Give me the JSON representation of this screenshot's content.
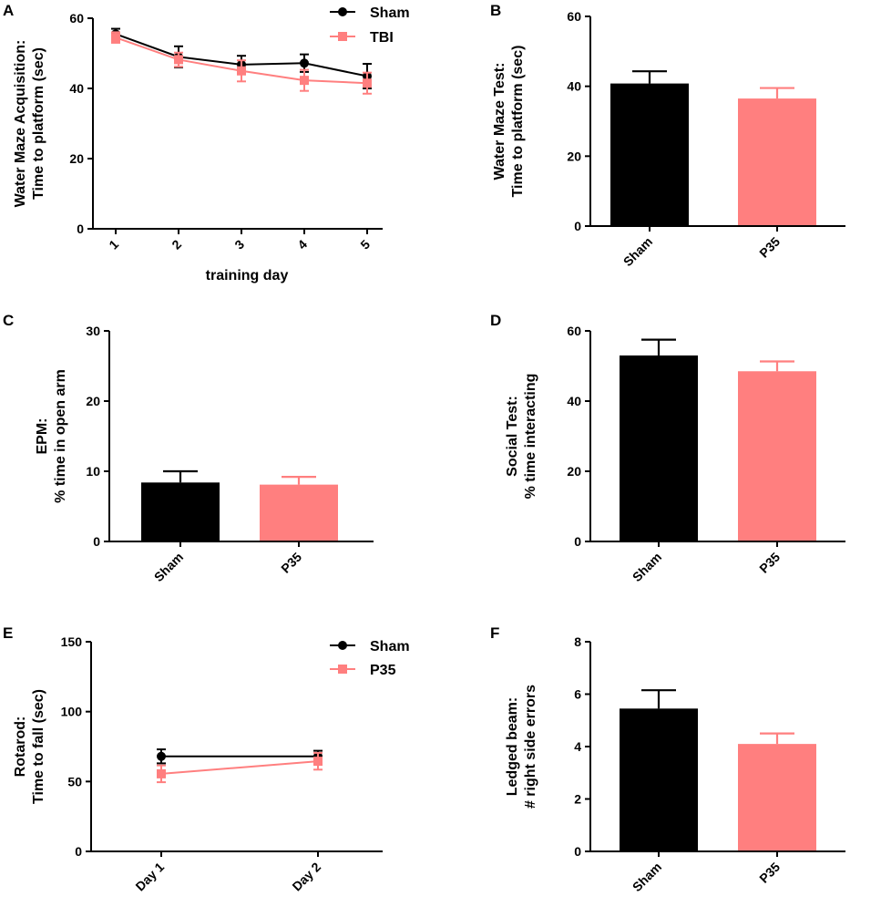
{
  "colors": {
    "sham": "#000000",
    "tbi": "#ff7f7f",
    "axis": "#000000"
  },
  "chart_data": [
    {
      "panel": "A",
      "type": "line",
      "xlabel": "training day",
      "ylabel_lines": [
        "Water Maze Acquisition:",
        "Time to platform (sec)"
      ],
      "categories": [
        "1",
        "2",
        "3",
        "4",
        "5"
      ],
      "yticks": [
        "0",
        "20",
        "40",
        "60"
      ],
      "ylim": [
        0,
        60
      ],
      "series": [
        {
          "name": "Sham",
          "marker": "circle",
          "color": "#000000",
          "values": [
            55.5,
            49,
            46.8,
            47.2,
            43.5
          ],
          "errors": [
            1.5,
            3,
            2.5,
            2.5,
            3.5
          ]
        },
        {
          "name": "TBI",
          "marker": "square",
          "color": "#ff7f7f",
          "values": [
            54.5,
            48.2,
            45,
            42.3,
            41.5
          ],
          "errors": [
            1.5,
            2,
            3,
            3,
            3
          ]
        }
      ],
      "legend": "top-right"
    },
    {
      "panel": "B",
      "type": "bar",
      "ylabel_lines": [
        "Water Maze Test:",
        "Time to platform (sec)"
      ],
      "categories": [
        "Sham",
        "P35"
      ],
      "values": [
        40.8,
        36.5
      ],
      "errors": [
        3.5,
        3
      ],
      "yticks": [
        "0",
        "20",
        "40",
        "60"
      ],
      "ylim": [
        0,
        60
      ]
    },
    {
      "panel": "C",
      "type": "bar",
      "ylabel_lines": [
        "EPM:",
        "% time in open arm"
      ],
      "categories": [
        "Sham",
        "P35"
      ],
      "values": [
        8.4,
        8.1
      ],
      "errors": [
        1.6,
        1.1
      ],
      "yticks": [
        "0",
        "10",
        "20",
        "30"
      ],
      "ylim": [
        0,
        30
      ]
    },
    {
      "panel": "D",
      "type": "bar",
      "ylabel_lines": [
        "Social Test:",
        "% time interacting"
      ],
      "categories": [
        "Sham",
        "P35"
      ],
      "values": [
        53,
        48.5
      ],
      "errors": [
        4.5,
        2.8
      ],
      "yticks": [
        "0",
        "20",
        "40",
        "60"
      ],
      "ylim": [
        0,
        60
      ]
    },
    {
      "panel": "E",
      "type": "line",
      "ylabel_lines": [
        "Rotarod:",
        "Time to fall (sec)"
      ],
      "categories": [
        "Day 1",
        "Day 2"
      ],
      "yticks": [
        "0",
        "50",
        "100",
        "150"
      ],
      "ylim": [
        0,
        150
      ],
      "series": [
        {
          "name": "Sham",
          "marker": "circle",
          "color": "#000000",
          "values": [
            68,
            68
          ],
          "errors": [
            5,
            4
          ]
        },
        {
          "name": "P35",
          "marker": "square",
          "color": "#ff7f7f",
          "values": [
            55.5,
            64.5
          ],
          "errors": [
            6,
            6
          ]
        }
      ],
      "legend": "top-right"
    },
    {
      "panel": "F",
      "type": "bar",
      "ylabel_lines": [
        "Ledged beam:",
        "# right side errors"
      ],
      "categories": [
        "Sham",
        "P35"
      ],
      "values": [
        5.45,
        4.1
      ],
      "errors": [
        0.7,
        0.4
      ],
      "yticks": [
        "0",
        "2",
        "4",
        "6",
        "8"
      ],
      "ylim": [
        0,
        8
      ]
    }
  ]
}
